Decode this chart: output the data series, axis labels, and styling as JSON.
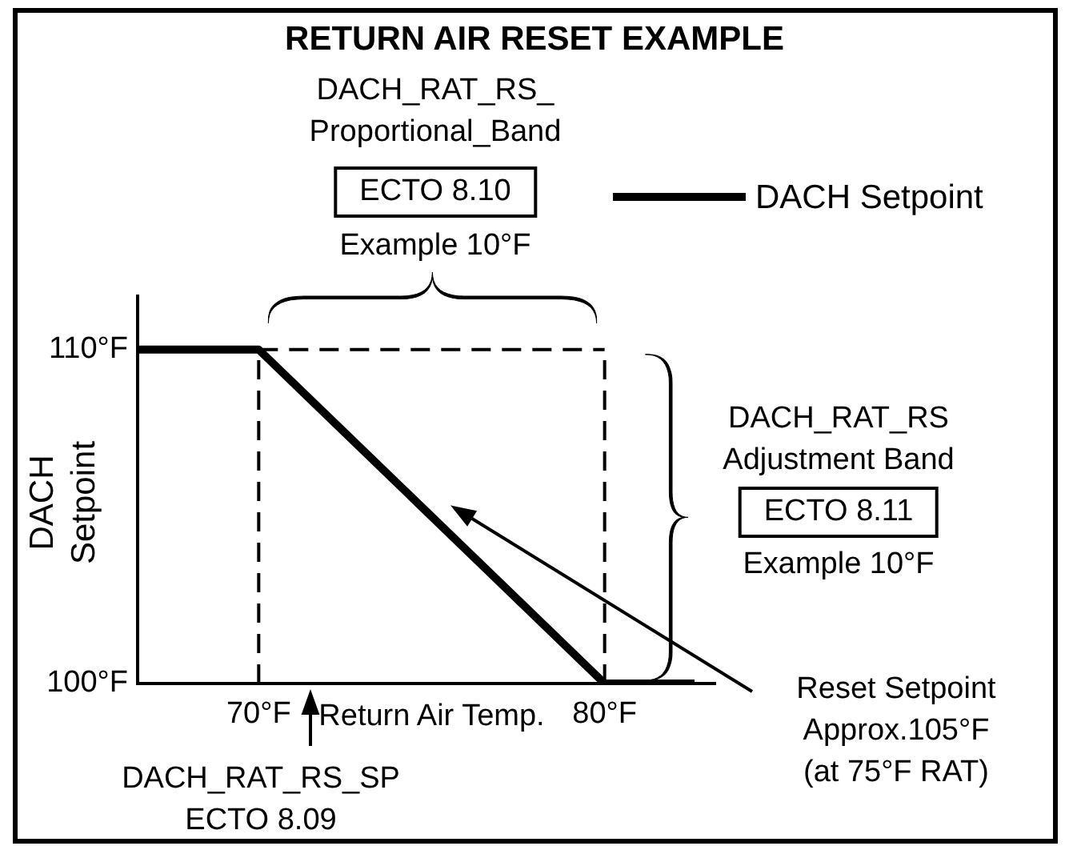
{
  "chart_data": {
    "type": "line",
    "title": "RETURN AIR RESET EXAMPLE",
    "xlabel": "Return Air Temp.",
    "ylabel": "DACH Setpoint",
    "x": [
      66.5,
      70,
      80,
      82.6
    ],
    "series": [
      {
        "name": "DACH Setpoint",
        "color": "#000000",
        "values": [
          110,
          110,
          100,
          100
        ]
      }
    ],
    "xlim": [
      66.5,
      83.2
    ],
    "ylim": [
      100,
      111.6
    ],
    "xticks": [
      {
        "value": 70,
        "label": "70°F"
      },
      {
        "value": 80,
        "label": "80°F"
      }
    ],
    "yticks": [
      {
        "value": 100,
        "label": "100°F"
      },
      {
        "value": 110,
        "label": "110°F"
      }
    ],
    "ref_lines": [
      {
        "axis": "x",
        "value": 70,
        "line_style": "dashed",
        "color": "#000000"
      },
      {
        "axis": "x",
        "value": 80,
        "line_style": "dashed",
        "color": "#000000"
      },
      {
        "axis": "y",
        "value": 110,
        "line_style": "dashed",
        "color": "#000000"
      }
    ],
    "annotations": [
      "DACH_RAT_RS_\nProportional_Band",
      "ECTO 8.10",
      "Example 10°F",
      "DACH_RAT_RS\nAdjustment Band",
      "ECTO 8.11",
      "Example 10°F",
      "DACH_RAT_RS_SP\nECTO 8.09",
      "Reset Setpoint\nApprox.105°F\n(at 75°F RAT)"
    ],
    "grid": false,
    "legend": "top right",
    "marker": "none",
    "line_style": "solid"
  }
}
